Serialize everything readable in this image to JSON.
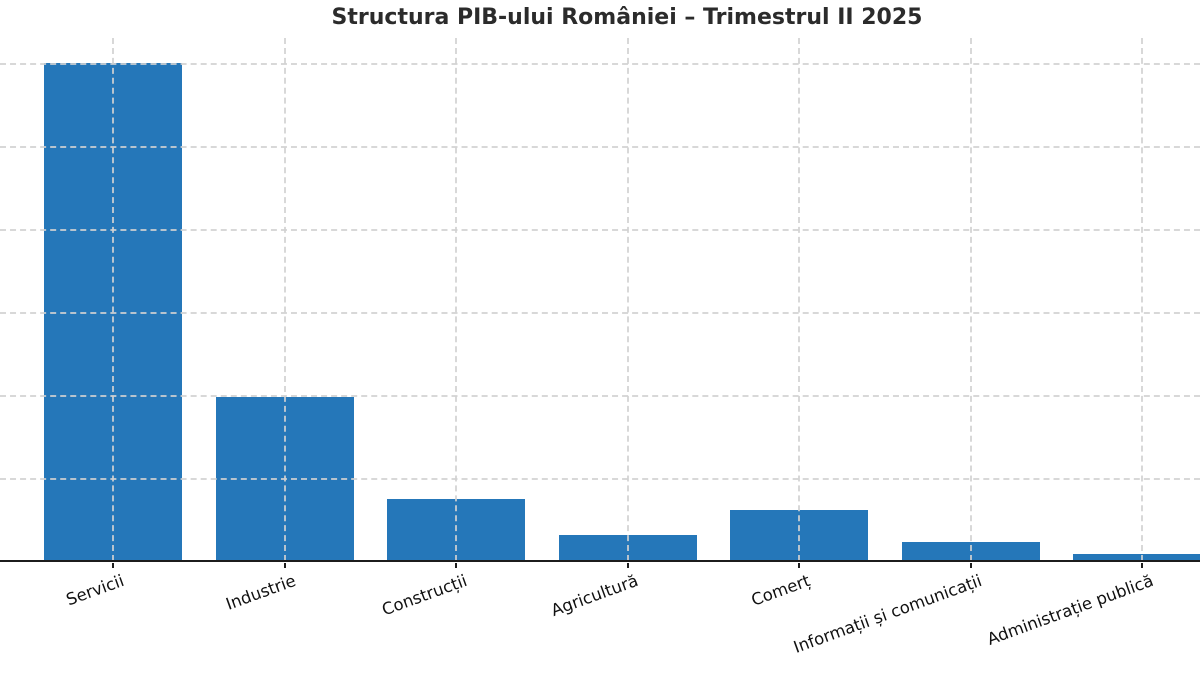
{
  "chart_data": {
    "type": "bar",
    "title": "Structura PIB-ului României – Trimestrul II 2025",
    "categories": [
      "Servicii",
      "Industrie",
      "Construcții",
      "Agricultură",
      "Comerț",
      "Informații și comunicații",
      "Administrație publică"
    ],
    "values": [
      60.0,
      19.8,
      7.5,
      3.1,
      6.1,
      2.3,
      0.9
    ],
    "xlabel": "",
    "ylabel": "",
    "ylim": [
      0,
      63
    ],
    "gridline_interval": 10,
    "grid": "dashed, both axes, drawn above bars",
    "yticklabels_visible": false,
    "xlabel_rotation_deg": 20,
    "legend": "none",
    "bar_color": "#2577b9",
    "axis_color": "#1c1c1c",
    "grid_color": "#d2d2d2",
    "title_color": "#2b2b2b",
    "note_last_bar": "rightmost bar is clipped by the right edge of the image"
  }
}
